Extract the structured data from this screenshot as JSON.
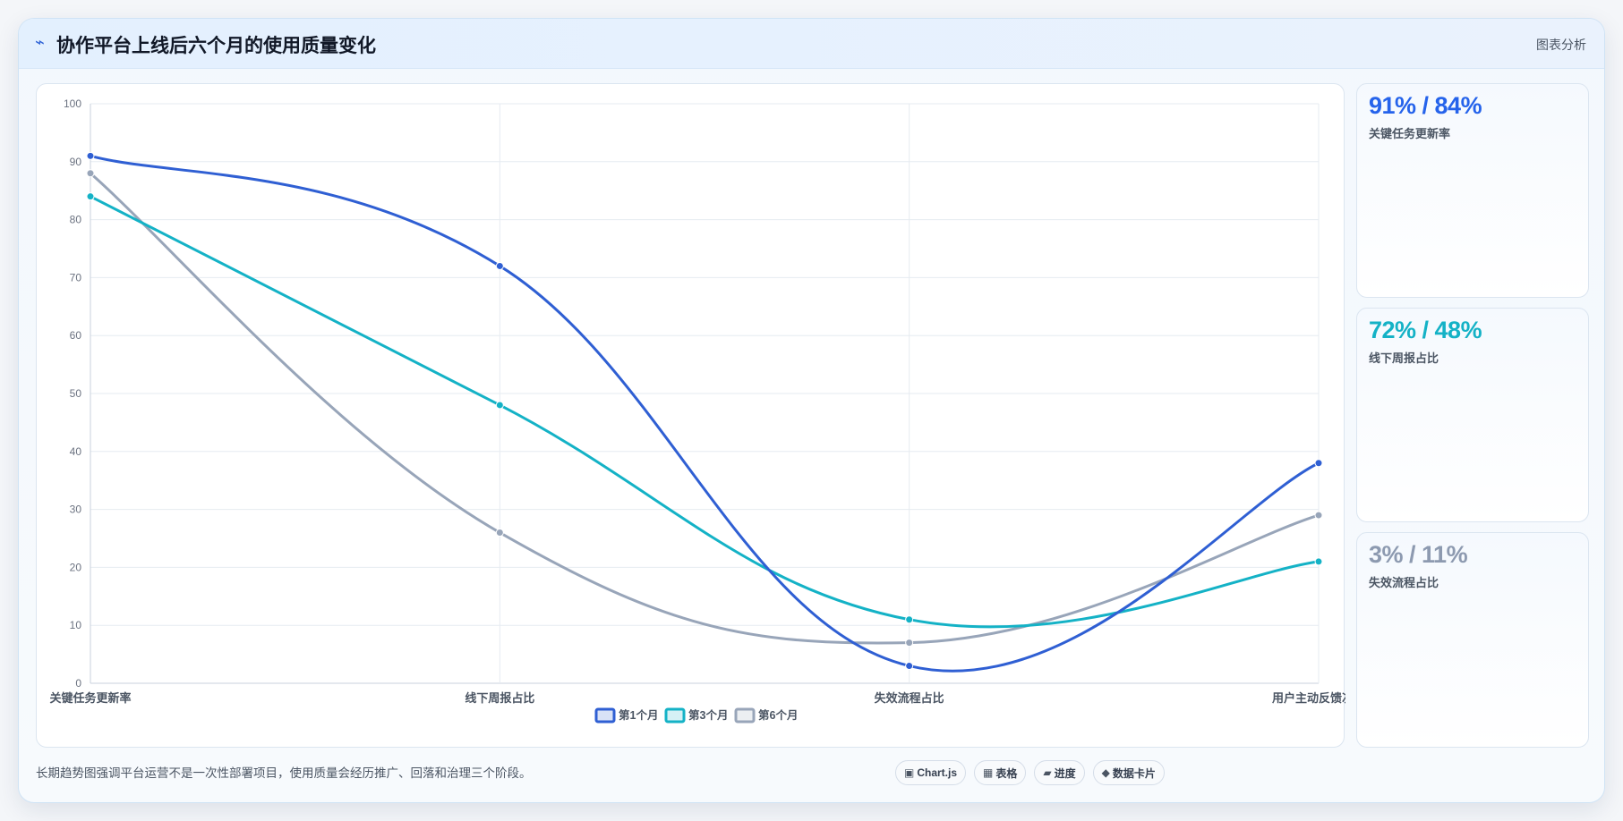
{
  "header": {
    "icon": "line-chart-icon",
    "title": "协作平台上线后六个月的使用质量变化",
    "right_label": "图表分析"
  },
  "chart_data": {
    "type": "line",
    "categories": [
      "关键任务更新率",
      "线下周报占比",
      "失效流程占比",
      "用户主动反馈次数"
    ],
    "series": [
      {
        "name": "第1个月",
        "values": [
          91,
          72,
          3,
          38
        ],
        "color": "#2f5fd3"
      },
      {
        "name": "第3个月",
        "values": [
          84,
          48,
          11,
          21
        ],
        "color": "#14b2c6"
      },
      {
        "name": "第6个月",
        "values": [
          88,
          26,
          7,
          29
        ],
        "color": "#98a5b9"
      }
    ],
    "ylim": [
      0,
      100
    ],
    "yticks": [
      0,
      10,
      20,
      30,
      40,
      50,
      60,
      70,
      80,
      90,
      100
    ],
    "grid": true,
    "legend": "bottom",
    "smooth": true
  },
  "stats": [
    {
      "value": "91% / 84%",
      "label": "关键任务更新率",
      "color": "#2563eb"
    },
    {
      "value": "72% / 48%",
      "label": "线下周报占比",
      "color": "#14b2c6"
    },
    {
      "value": "3% / 11%",
      "label": "失效流程占比",
      "color": "#8d9ab0"
    }
  ],
  "footer": {
    "text": "长期趋势图强调平台运营不是一次性部署项目，使用质量会经历推广、回落和治理三个阶段。"
  },
  "pills": [
    {
      "icon": "▣",
      "icon_name": "chartjs-icon",
      "label": "Chart.js"
    },
    {
      "icon": "▦",
      "icon_name": "table-icon",
      "label": "表格"
    },
    {
      "icon": "▰",
      "icon_name": "progress-icon",
      "label": "进度"
    },
    {
      "icon": "◆",
      "icon_name": "data-card-icon",
      "label": "数据卡片"
    }
  ]
}
